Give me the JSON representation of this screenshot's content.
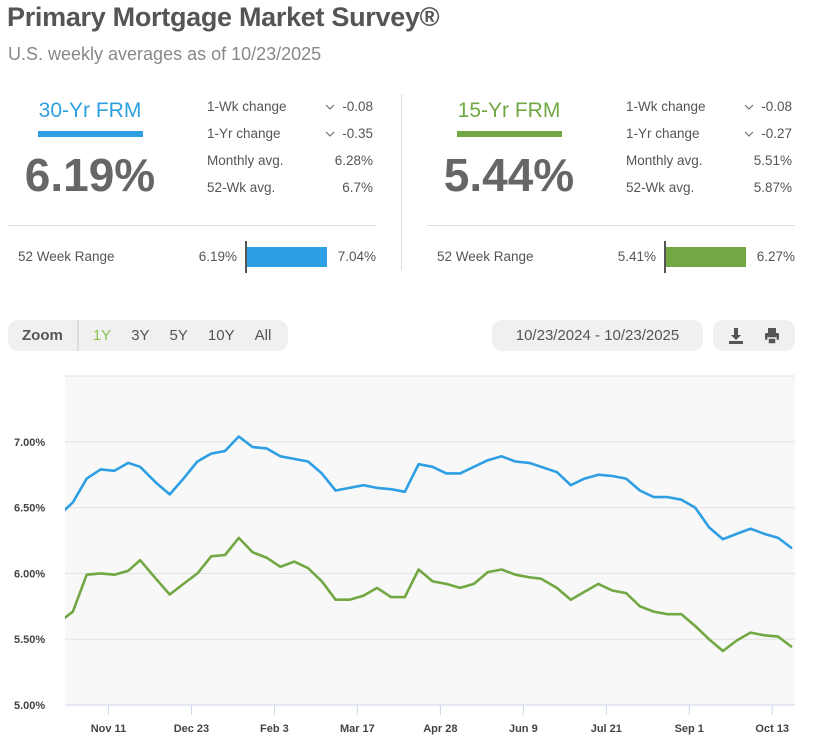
{
  "header": {
    "title": "Primary Mortgage Market Survey®",
    "subtitle": "U.S. weekly averages as of 10/23/2025"
  },
  "panels": [
    {
      "label": "30-Yr FRM",
      "color": "#2e9fe2",
      "rate": "6.19%",
      "stats": [
        {
          "label": "1-Wk change",
          "value": "-0.08",
          "trend": "down"
        },
        {
          "label": "1-Yr change",
          "value": "-0.35",
          "trend": "down"
        },
        {
          "label": "Monthly avg.",
          "value": "6.28%"
        },
        {
          "label": "52-Wk avg.",
          "value": "6.7%"
        }
      ],
      "range": {
        "label": "52 Week Range",
        "low": "6.19%",
        "high": "7.04%"
      }
    },
    {
      "label": "15-Yr FRM",
      "color": "#72a843",
      "rate": "5.44%",
      "stats": [
        {
          "label": "1-Wk change",
          "value": "-0.08",
          "trend": "down"
        },
        {
          "label": "1-Yr change",
          "value": "-0.27",
          "trend": "down"
        },
        {
          "label": "Monthly avg.",
          "value": "5.51%"
        },
        {
          "label": "52-Wk avg.",
          "value": "5.87%"
        }
      ],
      "range": {
        "label": "52 Week Range",
        "low": "5.41%",
        "high": "6.27%"
      }
    }
  ],
  "toolbar": {
    "zoom_label": "Zoom",
    "zoom_options": [
      "1Y",
      "3Y",
      "5Y",
      "10Y",
      "All"
    ],
    "selected": "1Y",
    "date_range": "10/23/2024 - 10/23/2025",
    "icons": [
      "download-icon",
      "print-icon"
    ]
  },
  "chart_data": {
    "type": "line",
    "title": "",
    "xlabel": "",
    "ylabel": "",
    "ylim": [
      5.0,
      7.5
    ],
    "xlim": [
      "2024-10-23",
      "2025-10-23"
    ],
    "yticks": [
      "5.00%",
      "5.50%",
      "6.00%",
      "6.50%",
      "7.00%"
    ],
    "ytick_values": [
      5.0,
      5.5,
      6.0,
      6.5,
      7.0
    ],
    "xticks": [
      {
        "label": "Nov 11",
        "date": "2024-11-11"
      },
      {
        "label": "Dec 23",
        "date": "2024-12-23"
      },
      {
        "label": "Feb 3",
        "date": "2025-02-03"
      },
      {
        "label": "Mar 17",
        "date": "2025-03-17"
      },
      {
        "label": "Apr 28",
        "date": "2025-04-28"
      },
      {
        "label": "Jun 9",
        "date": "2025-06-09"
      },
      {
        "label": "Jul 21",
        "date": "2025-07-21"
      },
      {
        "label": "Sep 1",
        "date": "2025-09-01"
      },
      {
        "label": "Oct 13",
        "date": "2025-10-13"
      }
    ],
    "grid": true,
    "x": [
      "2024-10-17",
      "2024-10-24",
      "2024-10-31",
      "2024-11-07",
      "2024-11-14",
      "2024-11-21",
      "2024-11-27",
      "2024-12-05",
      "2024-12-12",
      "2024-12-19",
      "2024-12-26",
      "2025-01-02",
      "2025-01-09",
      "2025-01-16",
      "2025-01-23",
      "2025-01-30",
      "2025-02-06",
      "2025-02-13",
      "2025-02-20",
      "2025-02-27",
      "2025-03-06",
      "2025-03-13",
      "2025-03-20",
      "2025-03-27",
      "2025-04-03",
      "2025-04-10",
      "2025-04-17",
      "2025-04-24",
      "2025-05-01",
      "2025-05-08",
      "2025-05-15",
      "2025-05-22",
      "2025-05-29",
      "2025-06-05",
      "2025-06-12",
      "2025-06-18",
      "2025-06-26",
      "2025-07-03",
      "2025-07-10",
      "2025-07-17",
      "2025-07-24",
      "2025-07-31",
      "2025-08-07",
      "2025-08-14",
      "2025-08-21",
      "2025-08-28",
      "2025-09-04",
      "2025-09-11",
      "2025-09-18",
      "2025-09-25",
      "2025-10-02",
      "2025-10-09",
      "2025-10-16",
      "2025-10-23"
    ],
    "series": [
      {
        "color": "#2e9fe2",
        "values": [
          6.44,
          6.54,
          6.72,
          6.79,
          6.78,
          6.84,
          6.81,
          6.69,
          6.6,
          6.72,
          6.85,
          6.91,
          6.93,
          7.04,
          6.96,
          6.95,
          6.89,
          6.87,
          6.85,
          6.76,
          6.63,
          6.65,
          6.67,
          6.65,
          6.64,
          6.62,
          6.83,
          6.81,
          6.76,
          6.76,
          6.81,
          6.86,
          6.89,
          6.85,
          6.84,
          6.81,
          6.77,
          6.67,
          6.72,
          6.75,
          6.74,
          6.72,
          6.63,
          6.58,
          6.58,
          6.56,
          6.5,
          6.35,
          6.26,
          6.3,
          6.34,
          6.3,
          6.27,
          6.19
        ]
      },
      {
        "color": "#72a843",
        "values": [
          5.63,
          5.71,
          5.99,
          6.0,
          5.99,
          6.02,
          6.1,
          5.96,
          5.84,
          5.92,
          6.0,
          6.13,
          6.14,
          6.27,
          6.16,
          6.12,
          6.05,
          6.09,
          6.04,
          5.94,
          5.8,
          5.8,
          5.83,
          5.89,
          5.82,
          5.82,
          6.03,
          5.94,
          5.92,
          5.89,
          5.92,
          6.01,
          6.03,
          5.99,
          5.97,
          5.96,
          5.89,
          5.8,
          5.86,
          5.92,
          5.87,
          5.85,
          5.75,
          5.71,
          5.69,
          5.69,
          5.6,
          5.5,
          5.41,
          5.49,
          5.55,
          5.53,
          5.52,
          5.44
        ]
      }
    ]
  }
}
